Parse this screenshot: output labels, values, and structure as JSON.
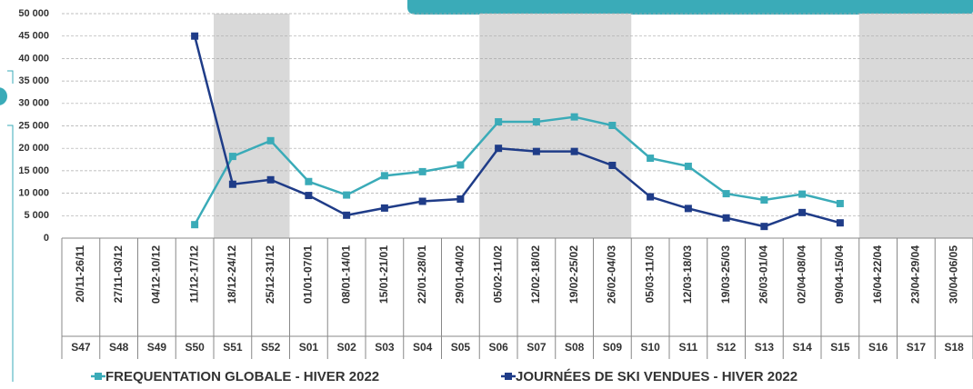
{
  "chart_data": {
    "type": "line",
    "categories": [
      "20/11-26/11",
      "27/11-03/12",
      "04/12-10/12",
      "11/12-17/12",
      "18/12-24/12",
      "25/12-31/12",
      "01/01-07/01",
      "08/01-14/01",
      "15/01-21/01",
      "22/01-28/01",
      "29/01-04/02",
      "05/02-11/02",
      "12/02-18/02",
      "19/02-25/02",
      "26/02-04/03",
      "05/03-11/03",
      "12/03-18/03",
      "19/03-25/03",
      "26/03-01/04",
      "02/04-08/04",
      "09/04-15/04",
      "16/04-22/04",
      "23/04-29/04",
      "30/04-06/05"
    ],
    "weeks": [
      "S47",
      "S48",
      "S49",
      "S50",
      "S51",
      "S52",
      "S01",
      "S02",
      "S03",
      "S04",
      "S05",
      "S06",
      "S07",
      "S08",
      "S09",
      "S10",
      "S11",
      "S12",
      "S13",
      "S14",
      "S15",
      "S16",
      "S17",
      "S18"
    ],
    "series": [
      {
        "name": "FREQUENTATION GLOBALE - HIVER 2022",
        "color": "#3aabb8",
        "values": [
          null,
          null,
          null,
          3000,
          18200,
          21700,
          12600,
          9600,
          13900,
          14800,
          16300,
          25900,
          25900,
          27000,
          25100,
          17800,
          16000,
          9900,
          8500,
          9800,
          7700,
          null,
          null,
          null
        ]
      },
      {
        "name": "JOURNÉES DE SKI VENDUES - HIVER 2022",
        "color": "#1f3c88",
        "values": [
          null,
          null,
          null,
          45000,
          12000,
          13000,
          9500,
          5100,
          6700,
          8200,
          8700,
          20000,
          19300,
          19300,
          16200,
          9200,
          6600,
          4500,
          2600,
          5700,
          3400,
          null,
          null,
          null
        ]
      }
    ],
    "ylim": [
      0,
      50000
    ],
    "yticks": [
      0,
      {
        "value": 5000,
        "label": "5 000"
      },
      {
        "value": 10000,
        "label": "10 000"
      },
      {
        "value": 15000,
        "label": "15 000"
      },
      {
        "value": 20000,
        "label": "20 000"
      },
      {
        "value": 25000,
        "label": "25 000"
      },
      {
        "value": 30000,
        "label": "30 000"
      },
      {
        "value": 35000,
        "label": "35 000"
      },
      {
        "value": 40000,
        "label": "40 000"
      },
      {
        "value": 45000,
        "label": "45 000"
      },
      {
        "value": 50000,
        "label": "50 000"
      }
    ],
    "grid": true
  }
}
